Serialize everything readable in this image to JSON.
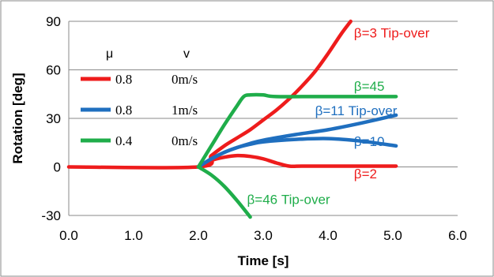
{
  "chart_data": {
    "type": "line",
    "title": "",
    "xlabel": "Time [s]",
    "ylabel": "Rotation [deg]",
    "xlim": [
      0,
      6
    ],
    "ylim": [
      -30,
      90
    ],
    "xticks": [
      0,
      1,
      2,
      3,
      4,
      5,
      6
    ],
    "xtick_labels": [
      "0.0",
      "1.0",
      "2.0",
      "3.0",
      "4.0",
      "5.0",
      "6.0"
    ],
    "yticks": [
      -30,
      0,
      30,
      60,
      90
    ],
    "ytick_labels": [
      "-30",
      "0",
      "30",
      "60",
      "90"
    ],
    "grid": "horizontal",
    "legend": {
      "placement": "top-left",
      "headers": [
        "μ",
        "v"
      ],
      "rows": [
        {
          "mu": "0.8",
          "v": "0m/s",
          "color": "#ee1c1c"
        },
        {
          "mu": "0.8",
          "v": "1m/s",
          "color": "#1f6fbf"
        },
        {
          "mu": "0.4",
          "v": "0m/s",
          "color": "#1fad4a"
        }
      ]
    },
    "series": [
      {
        "color": "#ee1c1c",
        "x": [
          0,
          2.0,
          2.2,
          2.4,
          2.6,
          2.8,
          3.0,
          3.2,
          3.4,
          3.6,
          3.8,
          4.0,
          4.2,
          4.35
        ],
        "y": [
          0,
          0,
          7,
          13,
          18,
          23,
          29,
          35,
          42,
          50,
          59,
          70,
          82,
          90
        ]
      },
      {
        "color": "#ee1c1c",
        "x": [
          2.0,
          2.2,
          2.4,
          2.6,
          2.8,
          3.0,
          3.2,
          3.4,
          3.6,
          4.0,
          4.5,
          5.05
        ],
        "y": [
          0,
          4,
          6,
          7,
          6.5,
          5,
          2.5,
          0.5,
          0.5,
          0.5,
          0.5,
          0.5
        ]
      },
      {
        "color": "#1f6fbf",
        "x": [
          2.0,
          2.2,
          2.4,
          2.6,
          2.8,
          3.0,
          3.5,
          4.0,
          4.5,
          5.05
        ],
        "y": [
          0,
          5,
          9,
          12,
          14.5,
          16.5,
          20,
          23,
          27,
          32
        ]
      },
      {
        "color": "#1f6fbf",
        "x": [
          2.0,
          2.2,
          2.4,
          2.6,
          2.8,
          3.0,
          3.5,
          4.0,
          4.5,
          5.05
        ],
        "y": [
          0,
          5,
          9,
          12,
          14,
          15.5,
          17,
          17.5,
          16,
          13
        ]
      },
      {
        "color": "#1fad4a",
        "x": [
          2.0,
          2.2,
          2.4,
          2.6,
          2.7,
          2.8,
          3.0,
          3.2,
          4.0,
          5.05
        ],
        "y": [
          0,
          13,
          26,
          38,
          43.5,
          44.5,
          44.5,
          43.5,
          43.5,
          43.5
        ]
      },
      {
        "color": "#1fad4a",
        "x": [
          2.0,
          2.2,
          2.4,
          2.6,
          2.8
        ],
        "y": [
          0,
          -5,
          -12,
          -21,
          -31
        ]
      }
    ],
    "annotations": [
      {
        "text": "β=3 Tip-over",
        "x": 4.4,
        "y": 80,
        "color": "#ee1c1c"
      },
      {
        "text": "β=45",
        "x": 4.4,
        "y": 47,
        "color": "#1fad4a"
      },
      {
        "text": "β=11 Tip-over",
        "x": 3.8,
        "y": 32,
        "color": "#1f6fbf"
      },
      {
        "text": "β=10",
        "x": 4.4,
        "y": 13,
        "color": "#1f6fbf"
      },
      {
        "text": "β=2",
        "x": 4.4,
        "y": -7,
        "color": "#ee1c1c"
      },
      {
        "text": "β=46 Tip-over",
        "x": 2.75,
        "y": -23,
        "color": "#1fad4a"
      }
    ]
  }
}
